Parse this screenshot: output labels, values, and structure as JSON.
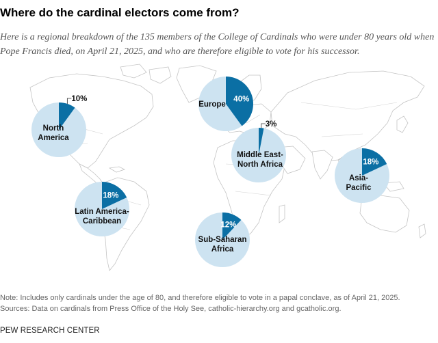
{
  "chart_data": {
    "type": "pie",
    "title": "Where do the cardinal electors come from?",
    "subtitle": "Here is a regional breakdown of the 135 members of the College of Cardinals who were under 80 years old when Pope Francis died, on April 21, 2025, and who are therefore eligible to vote for his successor.",
    "unit": "%",
    "total_members": 135,
    "regions": [
      {
        "key": "na",
        "label_lines": [
          "North",
          "America"
        ],
        "value": 10,
        "value_label": "10%"
      },
      {
        "key": "eu",
        "label_lines": [
          "Europe"
        ],
        "value": 40,
        "value_label": "40%"
      },
      {
        "key": "mena",
        "label_lines": [
          "Middle East-",
          "North Africa"
        ],
        "value": 3,
        "value_label": "3%"
      },
      {
        "key": "ap",
        "label_lines": [
          "Asia-",
          "Pacific"
        ],
        "value": 18,
        "value_label": "18%"
      },
      {
        "key": "lac",
        "label_lines": [
          "Latin America-",
          "Caribbean"
        ],
        "value": 18,
        "value_label": "18%"
      },
      {
        "key": "ssa",
        "label_lines": [
          "Sub-Saharan",
          "Africa"
        ],
        "value": 12,
        "value_label": "12%"
      }
    ]
  },
  "notes": {
    "note": "Note: Includes only cardinals under the age of 80, and therefore eligible to vote in a papal conclave, as of April 21, 2025.",
    "sources": "Sources: Data on cardinals from Press Office of the Holy See, catholic-hierarchy.org and gcatholic.org."
  },
  "brand": "PEW RESEARCH CENTER",
  "colors": {
    "share": "#0b6fa4",
    "rest": "#cde3f1",
    "land_stroke": "#c4c4c4"
  }
}
